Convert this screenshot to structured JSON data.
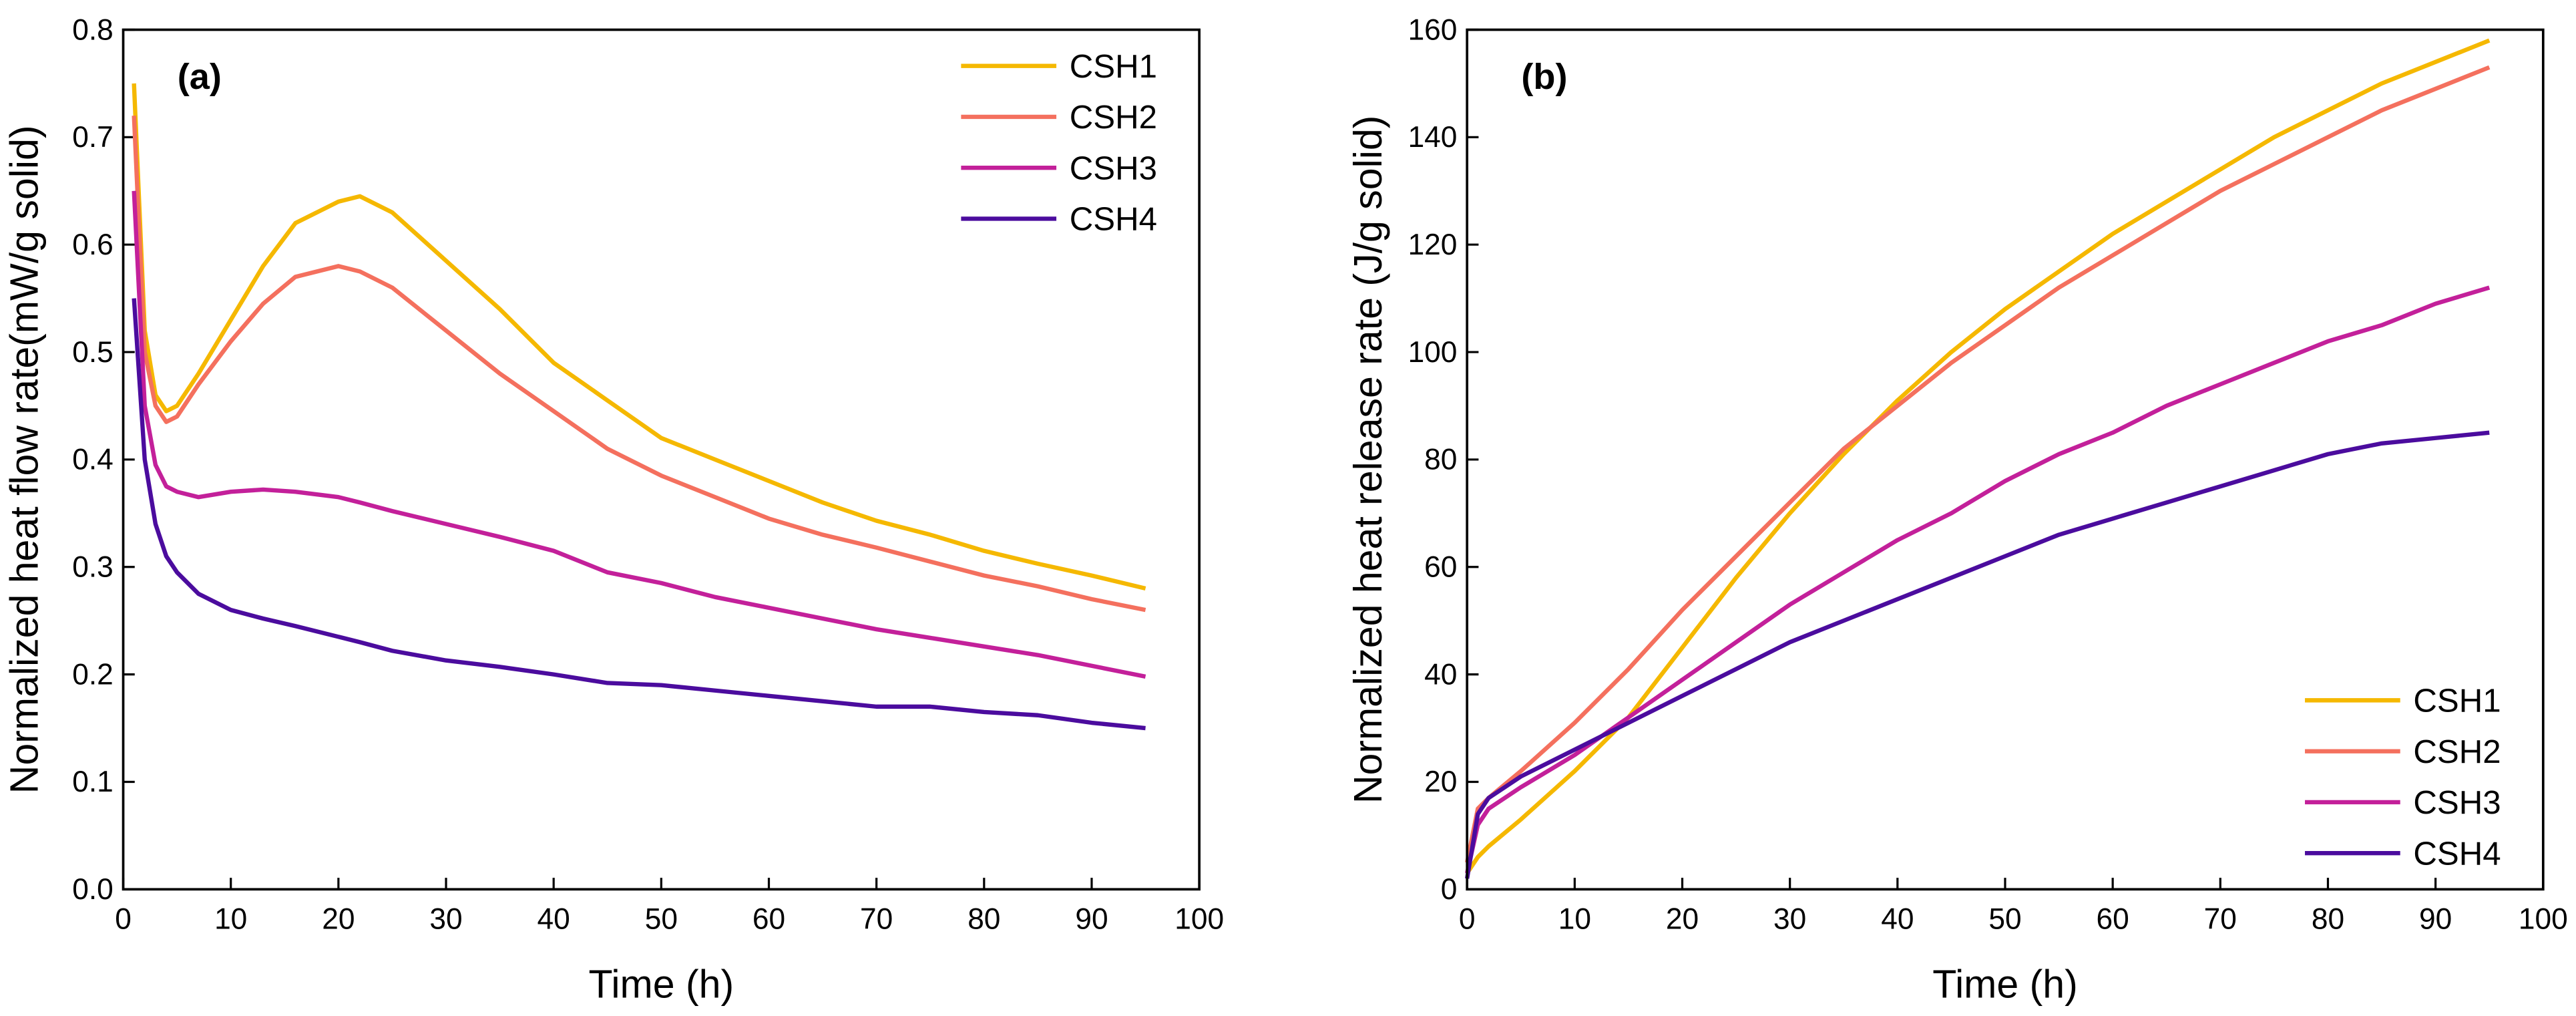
{
  "chart_data": [
    {
      "type": "line",
      "annotation": "(a)",
      "xlabel": "Time (h)",
      "ylabel": "Normalized heat flow rate(mW/g solid)",
      "x": [
        1,
        2,
        3,
        4,
        5,
        7,
        10,
        13,
        16,
        20,
        22,
        25,
        30,
        35,
        40,
        45,
        50,
        55,
        60,
        65,
        70,
        75,
        80,
        85,
        90,
        95
      ],
      "series": [
        {
          "name": "CSH1",
          "color": "#f5b800",
          "values": [
            0.75,
            0.52,
            0.46,
            0.445,
            0.45,
            0.48,
            0.53,
            0.58,
            0.62,
            0.64,
            0.645,
            0.63,
            0.585,
            0.54,
            0.49,
            0.455,
            0.42,
            0.4,
            0.38,
            0.36,
            0.343,
            0.33,
            0.315,
            0.303,
            0.292,
            0.28
          ]
        },
        {
          "name": "CSH2",
          "color": "#f4705e",
          "values": [
            0.72,
            0.5,
            0.45,
            0.435,
            0.44,
            0.47,
            0.51,
            0.545,
            0.57,
            0.58,
            0.575,
            0.56,
            0.52,
            0.48,
            0.445,
            0.41,
            0.385,
            0.365,
            0.345,
            0.33,
            0.318,
            0.305,
            0.292,
            0.282,
            0.27,
            0.26
          ]
        },
        {
          "name": "CSH3",
          "color": "#c3209a",
          "values": [
            0.65,
            0.45,
            0.395,
            0.375,
            0.37,
            0.365,
            0.37,
            0.372,
            0.37,
            0.365,
            0.36,
            0.352,
            0.34,
            0.328,
            0.315,
            0.295,
            0.285,
            0.272,
            0.262,
            0.252,
            0.242,
            0.234,
            0.226,
            0.218,
            0.208,
            0.198
          ]
        },
        {
          "name": "CSH4",
          "color": "#4b0c9e",
          "values": [
            0.55,
            0.4,
            0.34,
            0.31,
            0.295,
            0.275,
            0.26,
            0.252,
            0.245,
            0.235,
            0.23,
            0.222,
            0.213,
            0.207,
            0.2,
            0.192,
            0.19,
            0.185,
            0.18,
            0.175,
            0.17,
            0.17,
            0.165,
            0.162,
            0.155,
            0.15
          ]
        }
      ],
      "xlim": [
        0,
        100
      ],
      "xticks": [
        0,
        10,
        20,
        30,
        40,
        50,
        60,
        70,
        80,
        90,
        100
      ],
      "ylim": [
        0,
        0.8
      ],
      "yticks": [
        {
          "value": 0,
          "label": "0.0"
        },
        0.1,
        0.2,
        0.3,
        0.4,
        0.5,
        0.6,
        0.7,
        0.8
      ],
      "legend": "upper right"
    },
    {
      "type": "line",
      "annotation": "(b)",
      "xlabel": "Time (h)",
      "ylabel": "Normalized heat release rate  (J/g solid)",
      "x": [
        0,
        1,
        2,
        5,
        10,
        15,
        20,
        25,
        30,
        35,
        40,
        45,
        50,
        55,
        60,
        65,
        70,
        75,
        80,
        85,
        90,
        95
      ],
      "series": [
        {
          "name": "CSH1",
          "color": "#f5b800",
          "values": [
            3,
            6,
            8,
            13,
            22,
            32,
            45,
            58,
            70,
            81,
            91,
            100,
            108,
            115,
            122,
            128,
            134,
            140,
            145,
            150,
            154,
            158
          ]
        },
        {
          "name": "CSH2",
          "color": "#f4705e",
          "values": [
            5,
            15,
            17,
            22,
            31,
            41,
            52,
            62,
            72,
            82,
            90,
            98,
            105,
            112,
            118,
            124,
            130,
            135,
            140,
            145,
            149,
            153
          ]
        },
        {
          "name": "CSH3",
          "color": "#c3209a",
          "values": [
            3,
            12,
            15,
            19,
            25,
            32,
            39,
            46,
            53,
            59,
            65,
            70,
            76,
            81,
            85,
            90,
            94,
            98,
            102,
            105,
            109,
            112
          ]
        },
        {
          "name": "CSH4",
          "color": "#4b0c9e",
          "values": [
            2,
            14,
            17,
            21,
            26,
            31,
            36,
            41,
            46,
            50,
            54,
            58,
            62,
            66,
            69,
            72,
            75,
            78,
            81,
            83,
            84,
            85
          ]
        }
      ],
      "xlim": [
        0,
        100
      ],
      "xticks": [
        0,
        10,
        20,
        30,
        40,
        50,
        60,
        70,
        80,
        90,
        100
      ],
      "ylim": [
        0,
        160
      ],
      "yticks": [
        0,
        20,
        40,
        60,
        80,
        100,
        120,
        140,
        160
      ],
      "legend": "lower right"
    }
  ]
}
